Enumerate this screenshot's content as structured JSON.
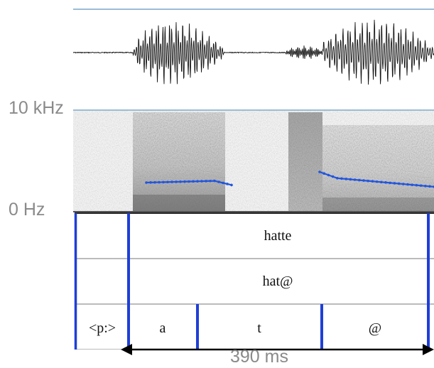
{
  "axis": {
    "freq_max_label": "10 kHz",
    "freq_min_label": "0 Hz"
  },
  "tiers": [
    {
      "intervals": [
        {
          "label": ""
        },
        {
          "label": "hatte"
        }
      ]
    },
    {
      "intervals": [
        {
          "label": ""
        },
        {
          "label": "hat@"
        }
      ]
    },
    {
      "intervals": [
        {
          "label": "<p:>"
        },
        {
          "label": "a"
        },
        {
          "label": "t"
        },
        {
          "label": "@"
        }
      ]
    }
  ],
  "duration": {
    "label": "390 ms"
  },
  "colors": {
    "boundary": "#1f3fd6",
    "pitch": "#2255dd",
    "waveform": "#151515",
    "panel_line": "#7aa6c8",
    "label_gray": "#8a8a8a"
  }
}
